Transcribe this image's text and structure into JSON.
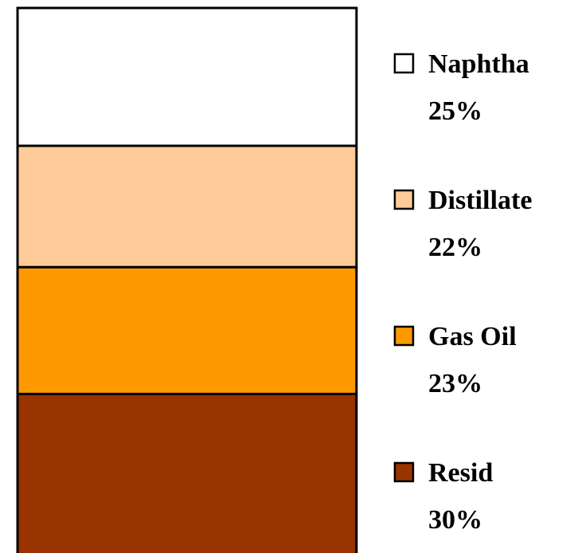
{
  "chart_data": {
    "type": "bar",
    "stacked": true,
    "ylim": [
      0,
      100
    ],
    "series": [
      {
        "name": "Naphtha",
        "color": "#ffffff",
        "values": [
          25
        ],
        "value_labels": [
          "25%"
        ]
      },
      {
        "name": "Distillate",
        "color": "#ffcc99",
        "values": [
          22
        ],
        "value_labels": [
          "22%"
        ]
      },
      {
        "name": "Gas Oil",
        "color": "#ff9900",
        "values": [
          23
        ],
        "value_labels": [
          "23%"
        ]
      },
      {
        "name": "Resid",
        "color": "#993300",
        "values": [
          30
        ],
        "value_labels": [
          "30%"
        ]
      }
    ]
  }
}
